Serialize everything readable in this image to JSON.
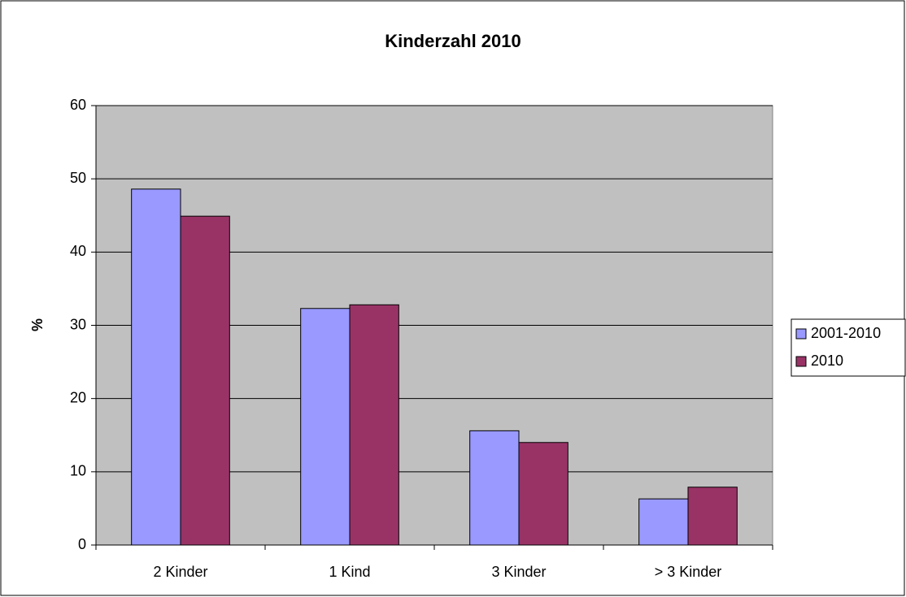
{
  "chart_data": {
    "type": "bar",
    "title": "Kinderzahl 2010",
    "y_label": "%",
    "categories": [
      "2 Kinder",
      "1 Kind",
      "3 Kinder",
      "> 3 Kinder"
    ],
    "series": [
      {
        "name": "2001-2010",
        "color": "#9999ff",
        "values": [
          48.6,
          32.3,
          15.6,
          6.3
        ]
      },
      {
        "name": "2010",
        "color": "#993366",
        "values": [
          44.9,
          32.8,
          14.0,
          7.9
        ]
      }
    ],
    "ylim": [
      0,
      60
    ],
    "yticks": [
      0,
      10,
      20,
      30,
      40,
      50,
      60
    ],
    "grid": true,
    "legend": "right"
  }
}
